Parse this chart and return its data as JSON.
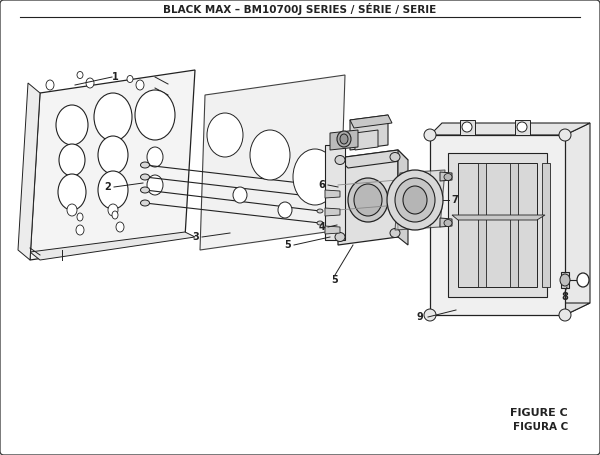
{
  "title": "BLACK MAX – BM10700J SERIES / SÉRIE / SERIE",
  "figure_label": "FIGURE C",
  "figure_label2": "FIGURA C",
  "bg_color": "#ffffff",
  "line_color": "#222222",
  "title_fontsize": 7.5,
  "label_fontsize": 7.0,
  "fig_label_fontsize": 8.0
}
